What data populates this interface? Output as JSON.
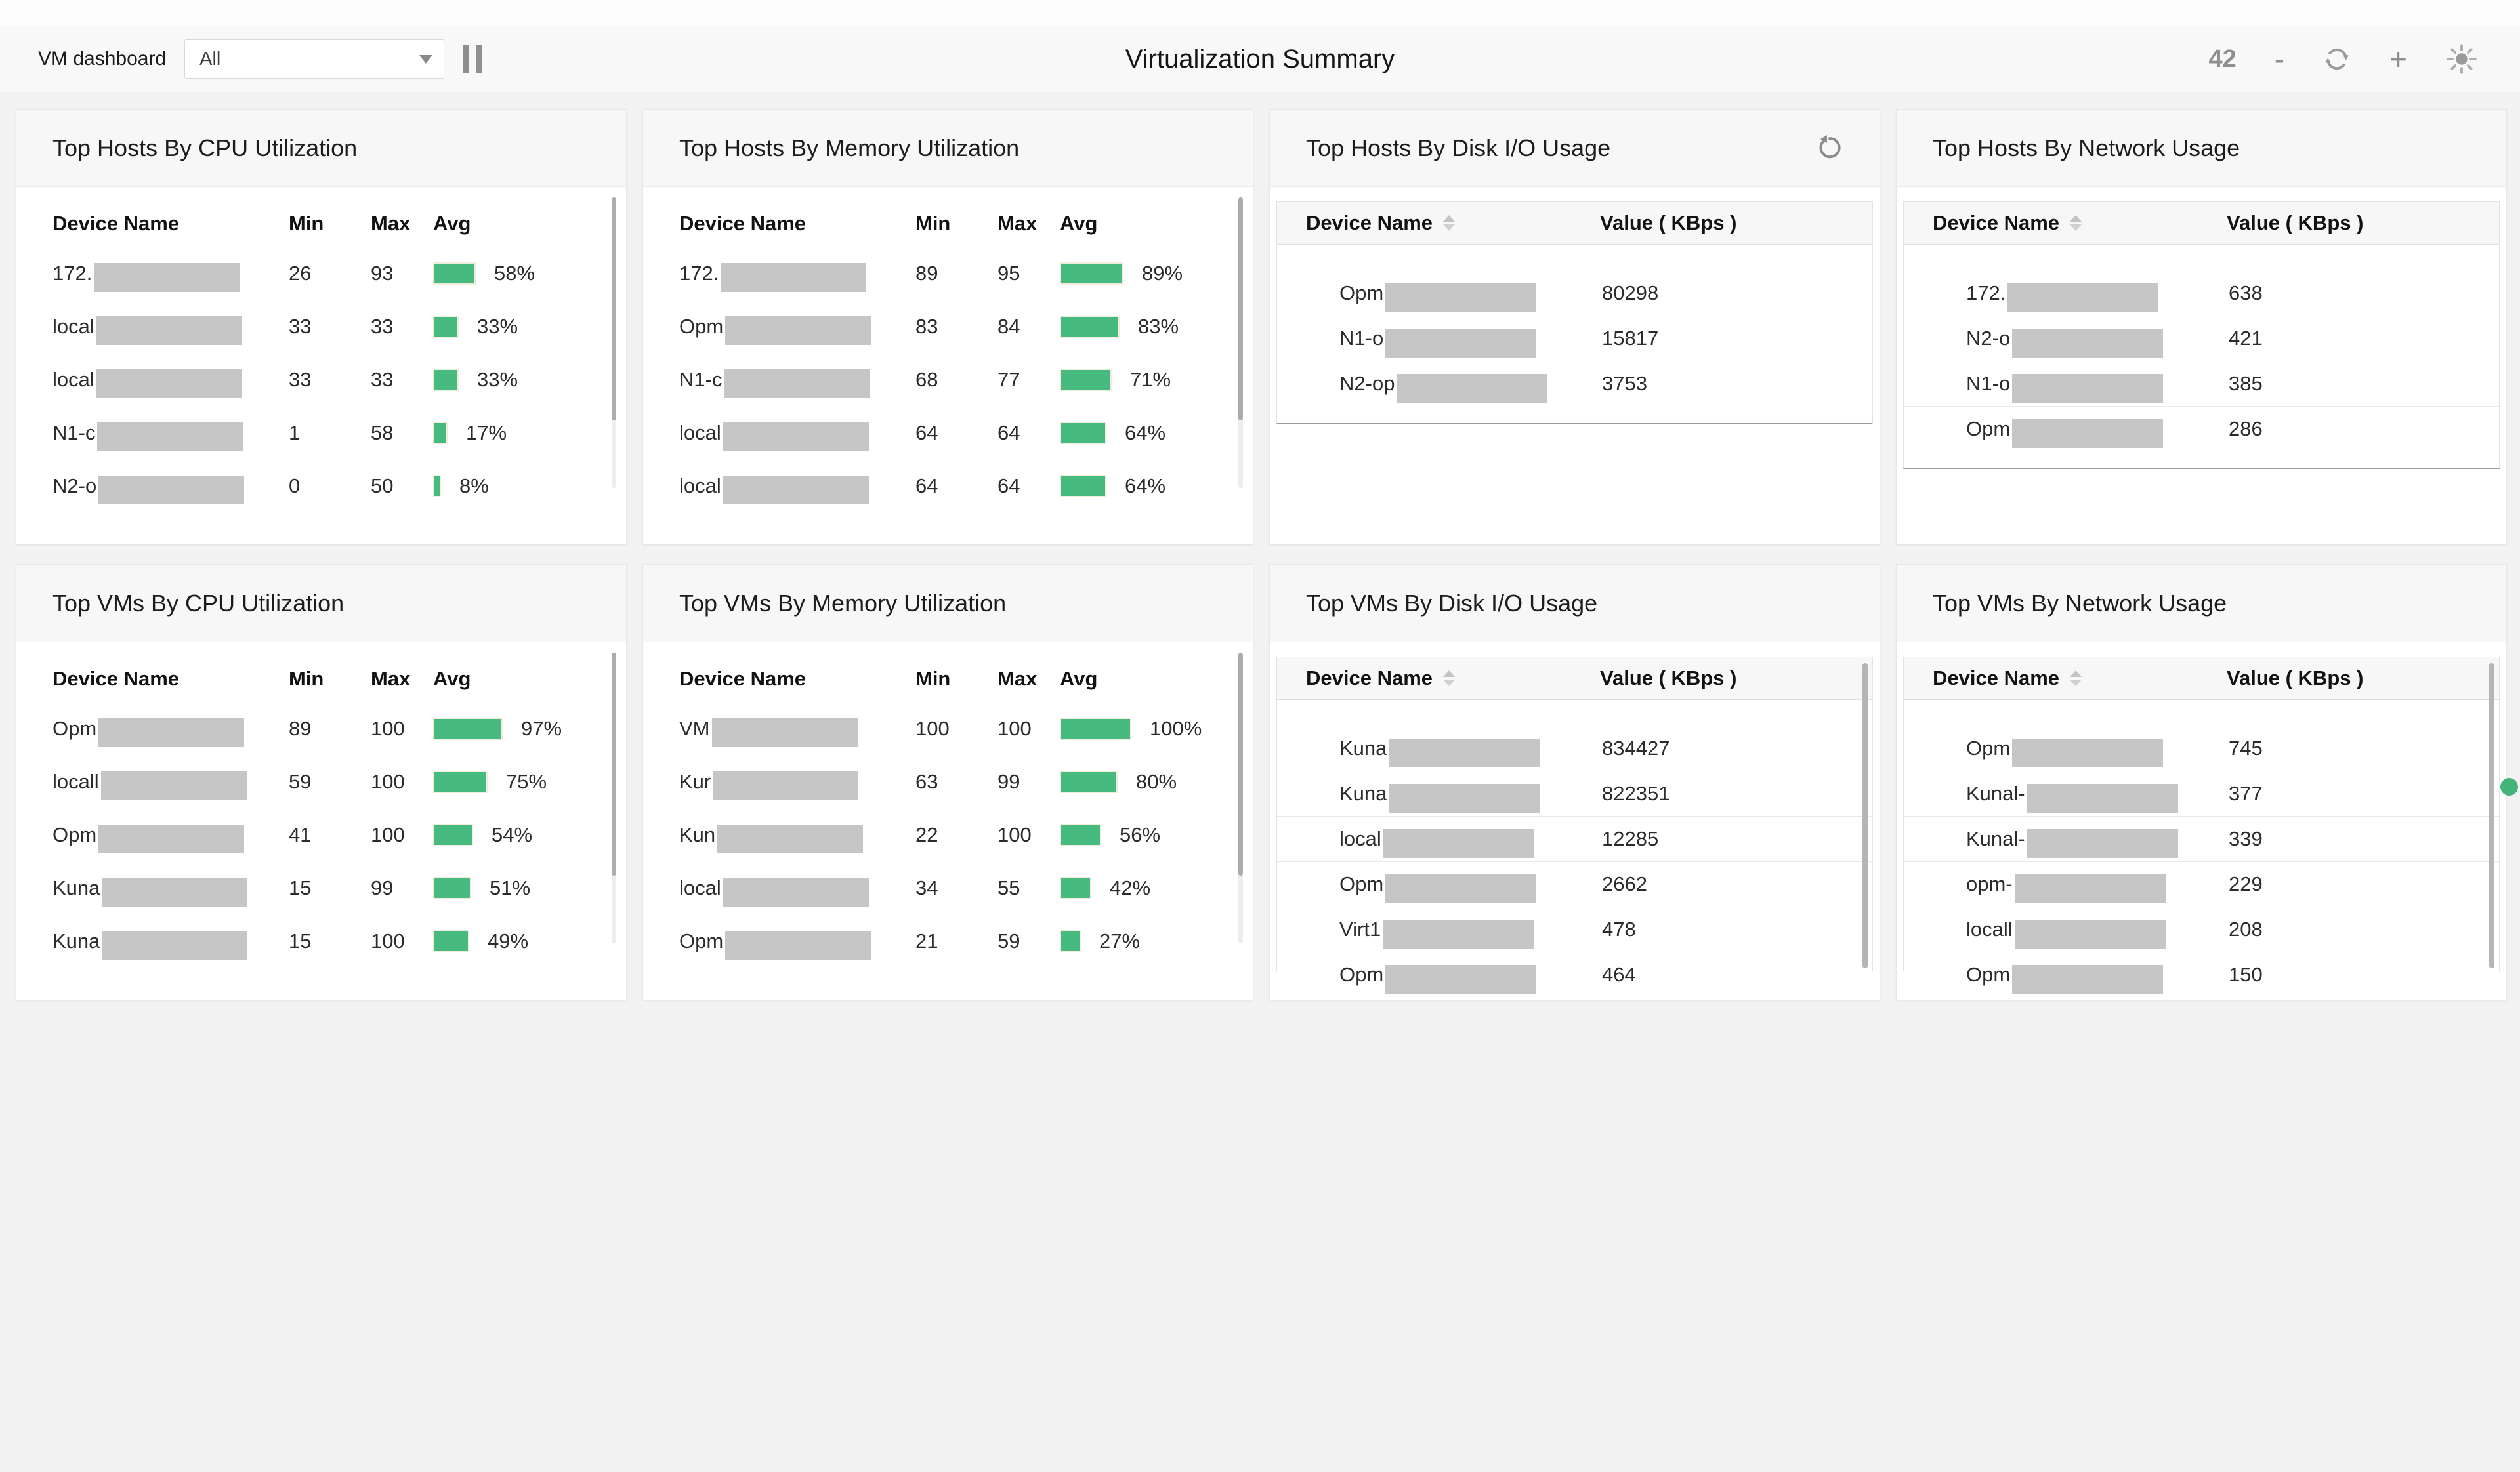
{
  "topbar": {
    "dashboard_label": "VM dashboard",
    "filter": {
      "value": "All"
    },
    "title": "Virtualization Summary",
    "widget_count": "42",
    "zoom_out_label": "-",
    "zoom_in_label": "+",
    "icons": [
      "pause-icon",
      "refresh-icon",
      "brightness-icon",
      "dropdown-caret-icon"
    ]
  },
  "columns": {
    "device_name": "Device Name",
    "min": "Min",
    "max": "Max",
    "avg": "Avg",
    "value": "Value ( KBps )"
  },
  "colors": {
    "accent_green": "#46ba7f",
    "bar_border": "#efecdb",
    "redaction_gray": "#c6c6c6",
    "green_dot": "#44b377",
    "panel_bg": "#ffffff",
    "page_bg": "#f2f2f3",
    "band_bg": "#f7f7f7"
  },
  "panels": [
    {
      "id": "top-hosts-cpu",
      "title": "Top Hosts By CPU Utilization",
      "type": "utilization",
      "rows": [
        {
          "name_prefix": "172.",
          "min": "26",
          "max": "93",
          "avg_pct": 58,
          "avg_label": "58%"
        },
        {
          "name_prefix": "local",
          "min": "33",
          "max": "33",
          "avg_pct": 33,
          "avg_label": "33%"
        },
        {
          "name_prefix": "local",
          "min": "33",
          "max": "33",
          "avg_pct": 33,
          "avg_label": "33%"
        },
        {
          "name_prefix": "N1-c",
          "min": "1",
          "max": "58",
          "avg_pct": 17,
          "avg_label": "17%"
        },
        {
          "name_prefix": "N2-o",
          "min": "0",
          "max": "50",
          "avg_pct": 8,
          "avg_label": "8%"
        }
      ]
    },
    {
      "id": "top-hosts-memory",
      "title": "Top Hosts By Memory Utilization",
      "type": "utilization",
      "rows": [
        {
          "name_prefix": "172.",
          "min": "89",
          "max": "95",
          "avg_pct": 89,
          "avg_label": "89%"
        },
        {
          "name_prefix": "Opm",
          "min": "83",
          "max": "84",
          "avg_pct": 83,
          "avg_label": "83%"
        },
        {
          "name_prefix": "N1-c",
          "min": "68",
          "max": "77",
          "avg_pct": 71,
          "avg_label": "71%"
        },
        {
          "name_prefix": "local",
          "min": "64",
          "max": "64",
          "avg_pct": 64,
          "avg_label": "64%"
        },
        {
          "name_prefix": "local",
          "min": "64",
          "max": "64",
          "avg_pct": 64,
          "avg_label": "64%"
        }
      ]
    },
    {
      "id": "top-hosts-disk-io",
      "title": "Top Hosts By Disk I/O Usage",
      "type": "value",
      "restore_icon": true,
      "rows": [
        {
          "name_prefix": "Opm",
          "value": "80298"
        },
        {
          "name_prefix": "N1-o",
          "value": "15817"
        },
        {
          "name_prefix": "N2-op",
          "value": "3753"
        }
      ]
    },
    {
      "id": "top-hosts-network",
      "title": "Top Hosts By Network Usage",
      "type": "value",
      "rows": [
        {
          "name_prefix": "172.",
          "value": "638"
        },
        {
          "name_prefix": "N2-o",
          "value": "421"
        },
        {
          "name_prefix": "N1-o",
          "value": "385"
        },
        {
          "name_prefix": "Opm",
          "value": "286"
        }
      ]
    },
    {
      "id": "top-vms-cpu",
      "title": "Top VMs By CPU Utilization",
      "type": "utilization",
      "rows": [
        {
          "name_prefix": "Opm",
          "min": "89",
          "max": "100",
          "avg_pct": 97,
          "avg_label": "97%"
        },
        {
          "name_prefix": "locall",
          "min": "59",
          "max": "100",
          "avg_pct": 75,
          "avg_label": "75%"
        },
        {
          "name_prefix": "Opm",
          "min": "41",
          "max": "100",
          "avg_pct": 54,
          "avg_label": "54%"
        },
        {
          "name_prefix": "Kuna",
          "min": "15",
          "max": "99",
          "avg_pct": 51,
          "avg_label": "51%"
        },
        {
          "name_prefix": "Kuna",
          "min": "15",
          "max": "100",
          "avg_pct": 49,
          "avg_label": "49%"
        }
      ]
    },
    {
      "id": "top-vms-memory",
      "title": "Top VMs By Memory Utilization",
      "type": "utilization",
      "rows": [
        {
          "name_prefix": "VM",
          "min": "100",
          "max": "100",
          "avg_pct": 100,
          "avg_label": "100%"
        },
        {
          "name_prefix": "Kur",
          "min": "63",
          "max": "99",
          "avg_pct": 80,
          "avg_label": "80%"
        },
        {
          "name_prefix": "Kun",
          "min": "22",
          "max": "100",
          "avg_pct": 56,
          "avg_label": "56%"
        },
        {
          "name_prefix": "local",
          "min": "34",
          "max": "55",
          "avg_pct": 42,
          "avg_label": "42%"
        },
        {
          "name_prefix": "Opm",
          "min": "21",
          "max": "59",
          "avg_pct": 27,
          "avg_label": "27%"
        }
      ]
    },
    {
      "id": "top-vms-disk-io",
      "title": "Top VMs By Disk I/O Usage",
      "type": "value",
      "clipped": true,
      "scrollbar": true,
      "rows": [
        {
          "name_prefix": "Kuna",
          "value": "834427"
        },
        {
          "name_prefix": "Kuna",
          "value": "822351"
        },
        {
          "name_prefix": "local",
          "value": "12285"
        },
        {
          "name_prefix": "Opm",
          "value": "2662"
        },
        {
          "name_prefix": "Virt1",
          "value": "478"
        },
        {
          "name_prefix": "Opm",
          "value": "464"
        }
      ]
    },
    {
      "id": "top-vms-network",
      "title": "Top VMs By Network Usage",
      "type": "value",
      "clipped": true,
      "scrollbar": true,
      "rows": [
        {
          "name_prefix": "Opm",
          "value": "745"
        },
        {
          "name_prefix": "Kunal-",
          "value": "377"
        },
        {
          "name_prefix": "Kunal-",
          "value": "339"
        },
        {
          "name_prefix": "opm-",
          "value": "229"
        },
        {
          "name_prefix": "locall",
          "value": "208"
        },
        {
          "name_prefix": "Opm",
          "value": "150"
        }
      ]
    }
  ]
}
